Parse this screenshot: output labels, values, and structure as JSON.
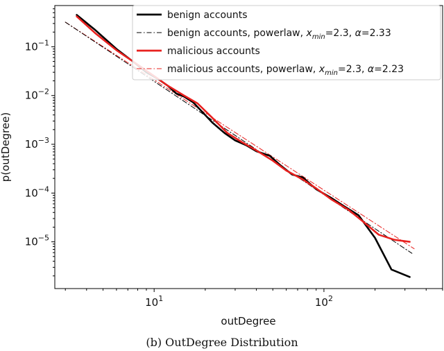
{
  "chart_data": {
    "type": "line",
    "xscale": "log",
    "yscale": "log",
    "xlim": [
      2.6,
      500
    ],
    "ylim": [
      1.1e-06,
      0.7
    ],
    "xlabel": "outDegree",
    "ylabel": "p(outDegree)",
    "x_ticks": [
      {
        "value": 10,
        "base": "10",
        "exp": "1"
      },
      {
        "value": 100,
        "base": "10",
        "exp": "2"
      }
    ],
    "y_ticks": [
      {
        "value": 1e-05,
        "base": "10",
        "exp": "−5"
      },
      {
        "value": 0.0001,
        "base": "10",
        "exp": "−4"
      },
      {
        "value": 0.001,
        "base": "10",
        "exp": "−3"
      },
      {
        "value": 0.01,
        "base": "10",
        "exp": "−2"
      },
      {
        "value": 0.1,
        "base": "10",
        "exp": "−1"
      }
    ],
    "legend_position": "top-right",
    "series": [
      {
        "name": "benign accounts",
        "color": "#000000",
        "style": "solid",
        "x": [
          3.5,
          4.5,
          6,
          7.5,
          9,
          10.5,
          12,
          13.5,
          15,
          17,
          19,
          22,
          26,
          30,
          35,
          40,
          48,
          55,
          65,
          75,
          90,
          110,
          130,
          160,
          200,
          250,
          320
        ],
        "y": [
          0.45,
          0.22,
          0.09,
          0.05,
          0.03,
          0.022,
          0.016,
          0.011,
          0.0095,
          0.0072,
          0.0048,
          0.0028,
          0.0017,
          0.0012,
          0.00095,
          0.00072,
          0.00058,
          0.00038,
          0.00024,
          0.00021,
          0.00012,
          8e-05,
          5.5e-05,
          3.5e-05,
          1.2e-05,
          2.7e-06,
          1.9e-06
        ]
      },
      {
        "name": "benign accounts, powerlaw, x_min=2.3, α=2.33",
        "legend_parts": [
          "benign accounts, powerlaw, ",
          "x",
          "min",
          "=2.3, ",
          "α",
          "=2.33"
        ],
        "color": "#000000",
        "style": "dash-dot",
        "x": [
          3,
          330
        ],
        "y": [
          0.32,
          5.8e-06
        ]
      },
      {
        "name": "malicious accounts",
        "color": "#e8201e",
        "style": "solid",
        "x": [
          3.5,
          4.5,
          6,
          8,
          10,
          12,
          15,
          18,
          22,
          27,
          33,
          40,
          50,
          60,
          75,
          90,
          110,
          140,
          170,
          210,
          260,
          320
        ],
        "y": [
          0.42,
          0.19,
          0.085,
          0.043,
          0.025,
          0.016,
          0.01,
          0.0069,
          0.0035,
          0.0017,
          0.0011,
          0.00075,
          0.00046,
          0.00029,
          0.00019,
          0.000125,
          7.5e-05,
          4.5e-05,
          2.6e-05,
          1.4e-05,
          1.1e-05,
          1e-05
        ]
      },
      {
        "name": "malicious accounts, powerlaw, x_min=2.3, α=2.23",
        "legend_parts": [
          "malicious accounts, powerlaw, ",
          "x",
          "min",
          "=2.3, ",
          "α",
          "=2.23"
        ],
        "color": "#e8201e",
        "style": "dash-dot",
        "x": [
          3,
          340
        ],
        "y": [
          0.32,
          7.2e-06
        ]
      }
    ]
  },
  "caption": "(b) OutDegree Distribution"
}
